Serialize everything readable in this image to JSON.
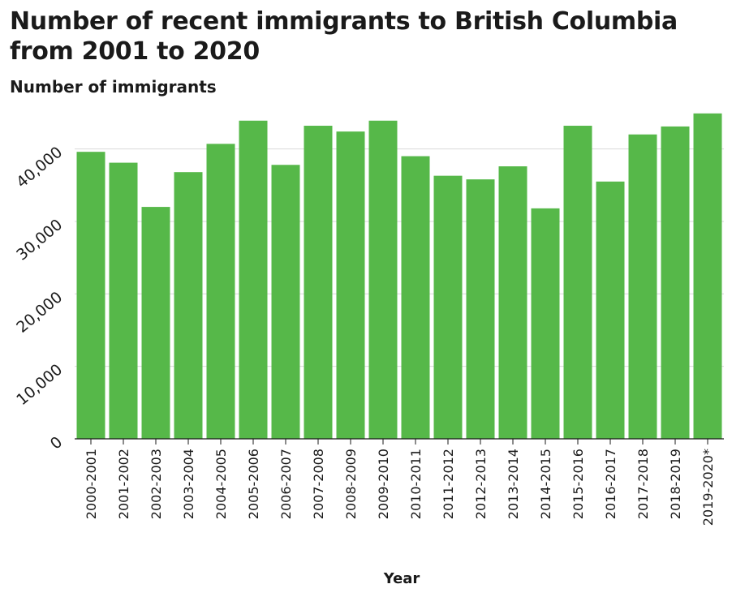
{
  "chart_data": {
    "type": "bar",
    "title": "Number of recent immigrants to British Columbia from 2001 to 2020",
    "ylabel": "Number of immigrants",
    "xlabel": "Year",
    "categories": [
      "2000-2001",
      "2001-2002",
      "2002-2003",
      "2003-2004",
      "2004-2005",
      "2005-2006",
      "2006-2007",
      "2007-2008",
      "2008-2009",
      "2009-2010",
      "2010-2011",
      "2011-2012",
      "2012-2013",
      "2013-2014",
      "2014-2015",
      "2015-2016",
      "2016-2017",
      "2017-2018",
      "2018-2019",
      "2019-2020*"
    ],
    "values": [
      39600,
      38100,
      32000,
      36800,
      40700,
      43900,
      37800,
      43200,
      42400,
      43900,
      39000,
      36300,
      35800,
      37600,
      31800,
      43200,
      35500,
      42000,
      43100,
      44900
    ],
    "y_ticks": [
      0,
      10000,
      20000,
      30000,
      40000
    ],
    "y_tick_labels": [
      "0",
      "10,000",
      "20,000",
      "30,000",
      "40,000"
    ],
    "ylim": [
      0,
      46000
    ],
    "grid": true,
    "bar_color": "#56b849",
    "grid_color": "#d9d9d9"
  }
}
